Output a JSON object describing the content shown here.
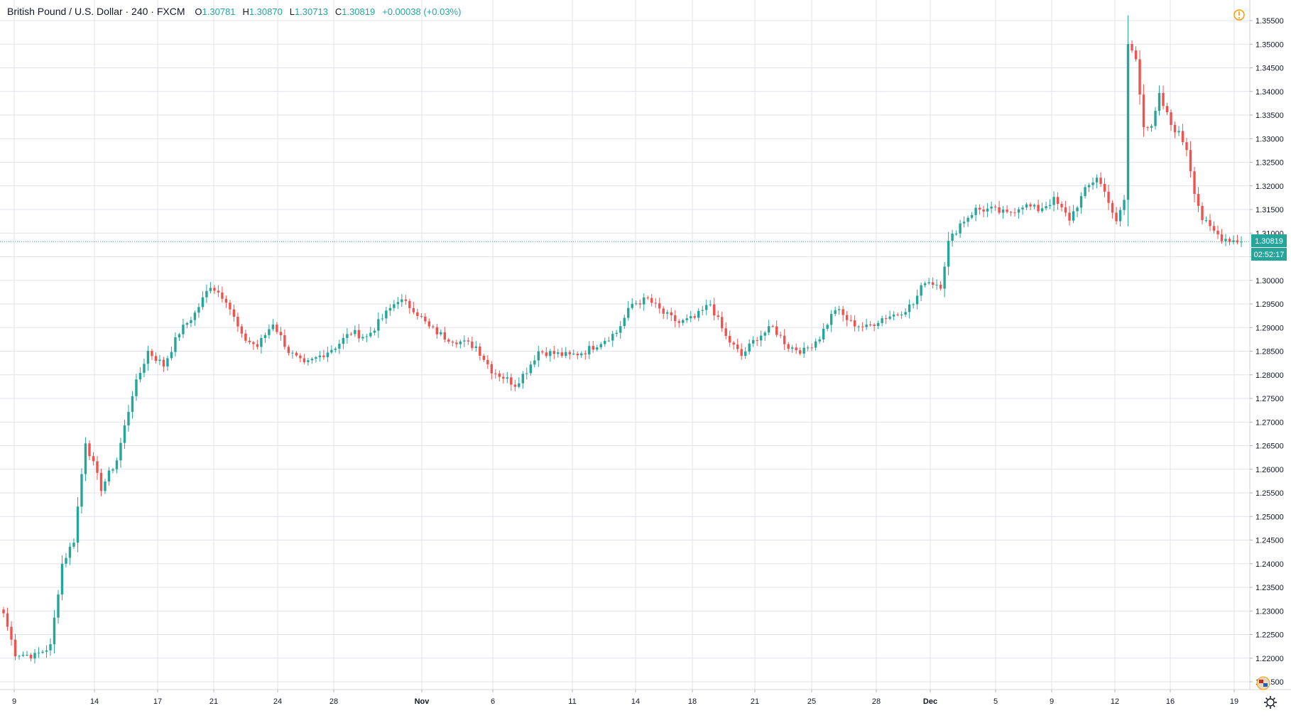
{
  "legend": {
    "title": "British Pound / U.S. Dollar · 240 · FXCM",
    "open_label": "O",
    "open": "1.30781",
    "high_label": "H",
    "high": "1.30870",
    "low_label": "L",
    "low": "1.30713",
    "close_label": "C",
    "close": "1.30819",
    "change": "+0.00038 (+0.03%)"
  },
  "price_tag": {
    "price": "1.30819",
    "countdown": "02:52:17"
  },
  "icons": {
    "alert": "alert-icon",
    "currency_flag": "flag-icon",
    "settings": "gear-icon"
  },
  "colors": {
    "up": "#26a69a",
    "down": "#ef5350",
    "grid": "#e0e3eb",
    "last_price": "#26a69a"
  },
  "chart_data": {
    "type": "candlestick",
    "symbol": "GBPUSD",
    "timeframe": "240",
    "ylim": [
      1.2125,
      1.3575
    ],
    "ytick_labels": [
      "1.21500",
      "1.22000",
      "1.22500",
      "1.23000",
      "1.23500",
      "1.24000",
      "1.24500",
      "1.25000",
      "1.25500",
      "1.26000",
      "1.26500",
      "1.27000",
      "1.27500",
      "1.28000",
      "1.28500",
      "1.29000",
      "1.29500",
      "1.30000",
      "1.30500",
      "1.31000",
      "1.31500",
      "1.32000",
      "1.32500",
      "1.33000",
      "1.33500",
      "1.34000",
      "1.34500",
      "1.35000",
      "1.35500"
    ],
    "xtick_labels": [
      "9",
      "14",
      "17",
      "21",
      "24",
      "28",
      "Nov",
      "6",
      "11",
      "14",
      "18",
      "21",
      "25",
      "28",
      "Dec",
      "5",
      "9",
      "12",
      "16",
      "19"
    ],
    "last_price": 1.30819,
    "grid": true,
    "close_path": [
      {
        "bar": 0,
        "close": 1.2295
      },
      {
        "bar": 3,
        "close": 1.221
      },
      {
        "bar": 8,
        "close": 1.2205
      },
      {
        "bar": 12,
        "close": 1.2225
      },
      {
        "bar": 15,
        "close": 1.24
      },
      {
        "bar": 18,
        "close": 1.245
      },
      {
        "bar": 21,
        "close": 1.266
      },
      {
        "bar": 25,
        "close": 1.256
      },
      {
        "bar": 29,
        "close": 1.262
      },
      {
        "bar": 33,
        "close": 1.276
      },
      {
        "bar": 37,
        "close": 1.285
      },
      {
        "bar": 41,
        "close": 1.282
      },
      {
        "bar": 45,
        "close": 1.289
      },
      {
        "bar": 49,
        "close": 1.293
      },
      {
        "bar": 53,
        "close": 1.299
      },
      {
        "bar": 57,
        "close": 1.296
      },
      {
        "bar": 61,
        "close": 1.288
      },
      {
        "bar": 65,
        "close": 1.286
      },
      {
        "bar": 69,
        "close": 1.291
      },
      {
        "bar": 73,
        "close": 1.285
      },
      {
        "bar": 77,
        "close": 1.282
      },
      {
        "bar": 81,
        "close": 1.284
      },
      {
        "bar": 85,
        "close": 1.286
      },
      {
        "bar": 89,
        "close": 1.289
      },
      {
        "bar": 93,
        "close": 1.288
      },
      {
        "bar": 97,
        "close": 1.292
      },
      {
        "bar": 101,
        "close": 1.296
      },
      {
        "bar": 105,
        "close": 1.294
      },
      {
        "bar": 109,
        "close": 1.29
      },
      {
        "bar": 113,
        "close": 1.288
      },
      {
        "bar": 117,
        "close": 1.287
      },
      {
        "bar": 121,
        "close": 1.286
      },
      {
        "bar": 125,
        "close": 1.281
      },
      {
        "bar": 129,
        "close": 1.279
      },
      {
        "bar": 131,
        "close": 1.278
      },
      {
        "bar": 134,
        "close": 1.281
      },
      {
        "bar": 137,
        "close": 1.285
      },
      {
        "bar": 141,
        "close": 1.2845
      },
      {
        "bar": 145,
        "close": 1.284
      },
      {
        "bar": 149,
        "close": 1.285
      },
      {
        "bar": 153,
        "close": 1.287
      },
      {
        "bar": 157,
        "close": 1.289
      },
      {
        "bar": 161,
        "close": 1.295
      },
      {
        "bar": 165,
        "close": 1.296
      },
      {
        "bar": 169,
        "close": 1.293
      },
      {
        "bar": 173,
        "close": 1.291
      },
      {
        "bar": 177,
        "close": 1.292
      },
      {
        "bar": 181,
        "close": 1.295
      },
      {
        "bar": 185,
        "close": 1.288
      },
      {
        "bar": 189,
        "close": 1.284
      },
      {
        "bar": 193,
        "close": 1.288
      },
      {
        "bar": 197,
        "close": 1.29
      },
      {
        "bar": 201,
        "close": 1.286
      },
      {
        "bar": 205,
        "close": 1.285
      },
      {
        "bar": 209,
        "close": 1.288
      },
      {
        "bar": 213,
        "close": 1.294
      },
      {
        "bar": 217,
        "close": 1.291
      },
      {
        "bar": 221,
        "close": 1.29
      },
      {
        "bar": 225,
        "close": 1.292
      },
      {
        "bar": 229,
        "close": 1.293
      },
      {
        "bar": 233,
        "close": 1.295
      },
      {
        "bar": 236,
        "close": 1.3
      },
      {
        "bar": 240,
        "close": 1.299
      },
      {
        "bar": 242,
        "close": 1.308
      },
      {
        "bar": 245,
        "close": 1.312
      },
      {
        "bar": 249,
        "close": 1.315
      },
      {
        "bar": 253,
        "close": 1.315
      },
      {
        "bar": 257,
        "close": 1.314
      },
      {
        "bar": 261,
        "close": 1.316
      },
      {
        "bar": 265,
        "close": 1.315
      },
      {
        "bar": 269,
        "close": 1.317
      },
      {
        "bar": 273,
        "close": 1.313
      },
      {
        "bar": 277,
        "close": 1.319
      },
      {
        "bar": 280,
        "close": 1.322
      },
      {
        "bar": 283,
        "close": 1.317
      },
      {
        "bar": 285,
        "close": 1.312
      },
      {
        "bar": 287,
        "close": 1.317
      },
      {
        "bar": 288,
        "close": 1.35
      },
      {
        "bar": 290,
        "close": 1.347
      },
      {
        "bar": 292,
        "close": 1.333
      },
      {
        "bar": 294,
        "close": 1.332
      },
      {
        "bar": 296,
        "close": 1.339
      },
      {
        "bar": 299,
        "close": 1.333
      },
      {
        "bar": 301,
        "close": 1.331
      },
      {
        "bar": 303,
        "close": 1.328
      },
      {
        "bar": 305,
        "close": 1.319
      },
      {
        "bar": 307,
        "close": 1.313
      },
      {
        "bar": 309,
        "close": 1.311
      },
      {
        "bar": 312,
        "close": 1.309
      },
      {
        "bar": 315,
        "close": 1.3085
      },
      {
        "bar": 317,
        "close": 1.30819
      }
    ]
  }
}
